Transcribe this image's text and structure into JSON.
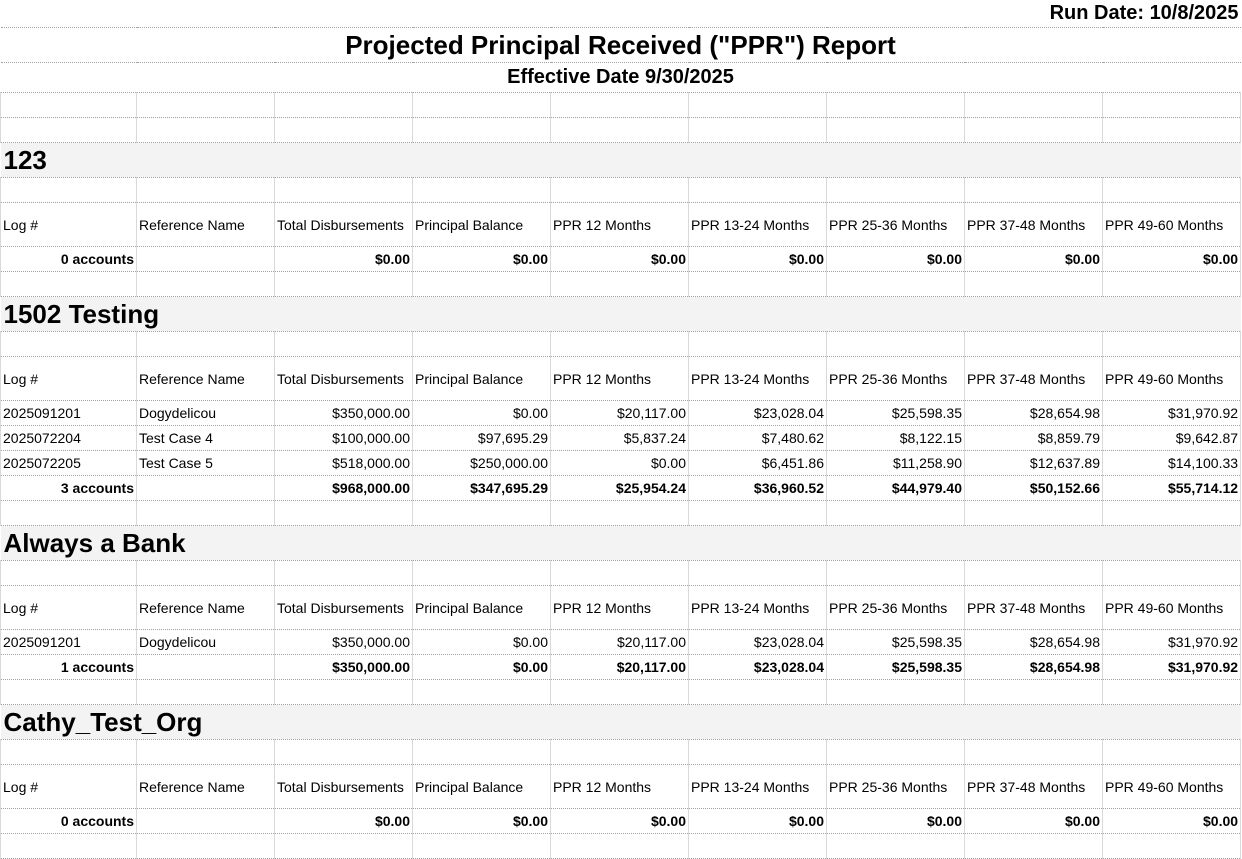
{
  "run_date": "Run Date: 10/8/2025",
  "title": "Projected Principal Received (\"PPR\") Report",
  "effective_date": "Effective Date 9/30/2025",
  "columns": [
    "Log #",
    "Reference Name",
    "Total Disbursements",
    "Principal Balance",
    "PPR 12 Months",
    "PPR 13-24 Months",
    "PPR 25-36 Months",
    "PPR 37-48 Months",
    "PPR 49-60 Months"
  ],
  "colors": {
    "section_bg": "#f3f3f3",
    "grid": "#d9d9d9"
  },
  "sections": [
    {
      "name": "123",
      "rows": [],
      "total": [
        "0 accounts",
        "",
        "$0.00",
        "$0.00",
        "$0.00",
        "$0.00",
        "$0.00",
        "$0.00",
        "$0.00"
      ]
    },
    {
      "name": "1502 Testing",
      "rows": [
        [
          "2025091201",
          "Dogydelicou",
          "$350,000.00",
          "$0.00",
          "$20,117.00",
          "$23,028.04",
          "$25,598.35",
          "$28,654.98",
          "$31,970.92"
        ],
        [
          "2025072204",
          "Test Case 4",
          "$100,000.00",
          "$97,695.29",
          "$5,837.24",
          "$7,480.62",
          "$8,122.15",
          "$8,859.79",
          "$9,642.87"
        ],
        [
          "2025072205",
          "Test Case 5",
          "$518,000.00",
          "$250,000.00",
          "$0.00",
          "$6,451.86",
          "$11,258.90",
          "$12,637.89",
          "$14,100.33"
        ]
      ],
      "total": [
        "3 accounts",
        "",
        "$968,000.00",
        "$347,695.29",
        "$25,954.24",
        "$36,960.52",
        "$44,979.40",
        "$50,152.66",
        "$55,714.12"
      ]
    },
    {
      "name": "Always a Bank",
      "rows": [
        [
          "2025091201",
          "Dogydelicou",
          "$350,000.00",
          "$0.00",
          "$20,117.00",
          "$23,028.04",
          "$25,598.35",
          "$28,654.98",
          "$31,970.92"
        ]
      ],
      "total": [
        "1 accounts",
        "",
        "$350,000.00",
        "$0.00",
        "$20,117.00",
        "$23,028.04",
        "$25,598.35",
        "$28,654.98",
        "$31,970.92"
      ]
    },
    {
      "name": "Cathy_Test_Org",
      "rows": [],
      "total": [
        "0 accounts",
        "",
        "$0.00",
        "$0.00",
        "$0.00",
        "$0.00",
        "$0.00",
        "$0.00",
        "$0.00"
      ]
    }
  ]
}
